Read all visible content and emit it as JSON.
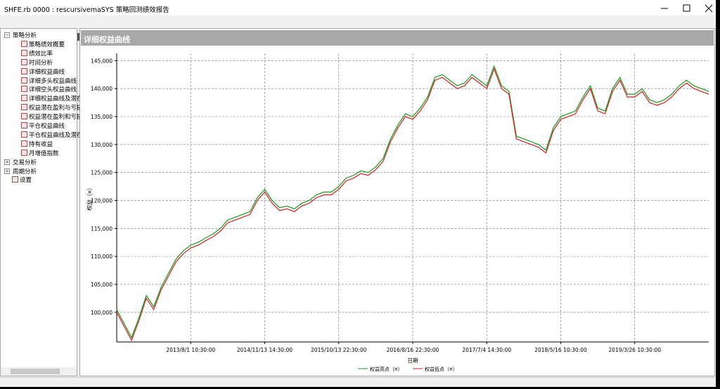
{
  "window": {
    "title": "SHFE.rb 0000 : rescursivemaSYS 策略回测绩效报告"
  },
  "tree": {
    "groups": [
      {
        "label": "策略分析",
        "items": [
          "策略绩效概要",
          "绩效比率",
          "时间分析",
          "详细权益曲线",
          "详细多头权益曲线",
          "详细空头权益曲线",
          "详细权益曲线及潜在",
          "权益潜在盈利与亏损",
          "权益潜在盈利和亏损",
          "平仓权益曲线",
          "平仓权益曲线及潜在",
          "持有收益",
          "月增值指数"
        ]
      },
      {
        "label": "交易分析"
      },
      {
        "label": "周期分析"
      },
      {
        "label": "设置"
      }
    ]
  },
  "panel": {
    "title": "详细权益曲线"
  },
  "chart_data": {
    "type": "line",
    "x_label": "日期",
    "y_label": "权益（¤）",
    "categories": [
      null,
      null,
      null,
      null,
      null,
      null,
      null,
      null,
      null,
      null,
      "2013/8/1 10:30:00",
      null,
      null,
      null,
      null,
      null,
      null,
      null,
      null,
      null,
      "2014/11/13 14:30:00",
      null,
      null,
      null,
      null,
      null,
      null,
      null,
      null,
      null,
      "2015/10/13 22:30:00",
      null,
      null,
      null,
      null,
      null,
      null,
      null,
      null,
      null,
      "2016/8/16 22:30:00",
      null,
      null,
      null,
      null,
      null,
      null,
      null,
      null,
      null,
      "2017/7/4 14:30:00",
      null,
      null,
      null,
      null,
      null,
      null,
      null,
      null,
      null,
      "2018/5/16 10:30:00",
      null,
      null,
      null,
      null,
      null,
      null,
      null,
      null,
      null,
      "2019/3/26 10:30:00",
      null,
      null,
      null,
      null,
      null,
      null,
      null,
      null,
      null,
      null
    ],
    "series": [
      {
        "name": "权益高点（¤）",
        "color": "#1a9a1a",
        "values": [
          100500,
          98000,
          95500,
          99000,
          103000,
          101000,
          104500,
          107000,
          109500,
          111000,
          112000,
          112500,
          113300,
          114000,
          115000,
          116500,
          117000,
          117500,
          118000,
          120500,
          122000,
          120000,
          118700,
          119000,
          118500,
          119500,
          120000,
          121000,
          121500,
          121500,
          122500,
          124000,
          124500,
          125300,
          125000,
          126000,
          127500,
          131000,
          133500,
          135500,
          135000,
          136500,
          138500,
          142000,
          142500,
          141500,
          140500,
          141000,
          142500,
          141500,
          140500,
          144000,
          140500,
          139500,
          131500,
          131000,
          130500,
          130000,
          129000,
          133000,
          135000,
          135500,
          136000,
          138500,
          140500,
          136500,
          136000,
          140000,
          142000,
          139000,
          139000,
          140000,
          138000,
          137500,
          138000,
          139000,
          140500,
          141500,
          140500,
          140000,
          139500
        ]
      },
      {
        "name": "权益低点（¤）",
        "color": "#d42020",
        "values": [
          100000,
          97500,
          95000,
          98500,
          102500,
          100500,
          104000,
          106500,
          109000,
          110500,
          111500,
          112000,
          112800,
          113500,
          114500,
          116000,
          116500,
          117000,
          117500,
          120000,
          121500,
          119500,
          118200,
          118500,
          118000,
          119000,
          119500,
          120500,
          121000,
          121000,
          122000,
          123500,
          124000,
          124800,
          124500,
          125500,
          127000,
          130500,
          133000,
          135000,
          134500,
          136000,
          138000,
          141500,
          142000,
          141000,
          140000,
          140500,
          142000,
          141000,
          140000,
          143500,
          140000,
          139000,
          131000,
          130500,
          130000,
          129500,
          128500,
          132500,
          134500,
          135000,
          135500,
          138000,
          140000,
          136000,
          135500,
          139500,
          141500,
          138500,
          138500,
          139500,
          137500,
          137000,
          137500,
          138500,
          140000,
          141000,
          140000,
          139500,
          139000
        ]
      }
    ],
    "ylim": [
      94700,
      146300
    ],
    "yticks": [
      {
        "value": 100000,
        "label": "100,000"
      },
      {
        "value": 105000,
        "label": "105,000"
      },
      {
        "value": 110000,
        "label": "110,000"
      },
      {
        "value": 115000,
        "label": "115,000"
      },
      {
        "value": 120000,
        "label": "120,000"
      },
      {
        "value": 125000,
        "label": "125,000"
      },
      {
        "value": 130000,
        "label": "130,000"
      },
      {
        "value": 135000,
        "label": "135,000"
      },
      {
        "value": 140000,
        "label": "140,000"
      },
      {
        "value": 145000,
        "label": "145,000"
      }
    ],
    "grid": true,
    "legend": "bottom"
  }
}
